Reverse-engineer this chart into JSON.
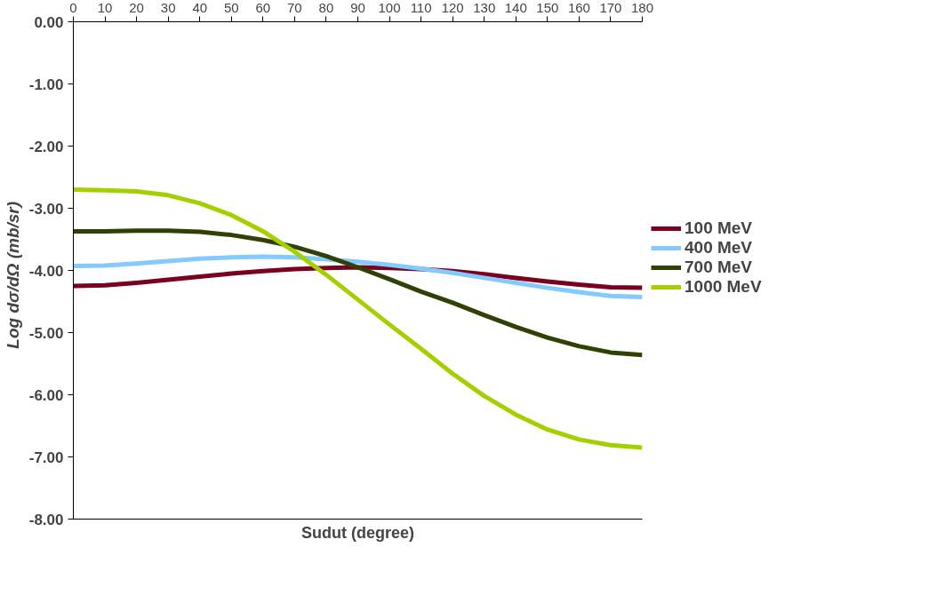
{
  "chart_data": {
    "type": "line",
    "xlabel": "Sudut (degree)",
    "ylabel": "Log dσ/dΩ   (mb/sr)",
    "x": [
      0,
      10,
      20,
      30,
      40,
      50,
      60,
      70,
      80,
      90,
      100,
      110,
      120,
      130,
      140,
      150,
      160,
      170,
      180
    ],
    "series": [
      {
        "name": "100 MeV",
        "color": "#7b0020",
        "values": [
          -4.25,
          -4.24,
          -4.2,
          -4.15,
          -4.1,
          -4.05,
          -4.01,
          -3.98,
          -3.96,
          -3.95,
          -3.96,
          -3.98,
          -4.01,
          -4.06,
          -4.12,
          -4.18,
          -4.23,
          -4.27,
          -4.28
        ]
      },
      {
        "name": "400 MeV",
        "color": "#83caff",
        "values": [
          -3.93,
          -3.92,
          -3.89,
          -3.85,
          -3.81,
          -3.79,
          -3.78,
          -3.79,
          -3.82,
          -3.86,
          -3.91,
          -3.97,
          -4.04,
          -4.12,
          -4.2,
          -4.28,
          -4.35,
          -4.41,
          -4.43
        ]
      },
      {
        "name": "700 MeV",
        "color": "#314004",
        "values": [
          -3.37,
          -3.37,
          -3.36,
          -3.36,
          -3.38,
          -3.43,
          -3.51,
          -3.62,
          -3.77,
          -3.95,
          -4.14,
          -4.34,
          -4.52,
          -4.72,
          -4.91,
          -5.08,
          -5.22,
          -5.32,
          -5.36
        ]
      },
      {
        "name": "1000 MeV",
        "color": "#a5cf00",
        "values": [
          -2.7,
          -2.71,
          -2.73,
          -2.79,
          -2.92,
          -3.11,
          -3.37,
          -3.7,
          -4.07,
          -4.47,
          -4.87,
          -5.26,
          -5.66,
          -6.02,
          -6.32,
          -6.56,
          -6.72,
          -6.81,
          -6.85
        ]
      }
    ],
    "xlim": [
      0,
      180
    ],
    "xticks": [
      0,
      10,
      20,
      30,
      40,
      50,
      60,
      70,
      80,
      90,
      100,
      110,
      120,
      130,
      140,
      150,
      160,
      170,
      180
    ],
    "ylim": [
      -8,
      0
    ],
    "yticks": [
      {
        "value": 0,
        "label": "0.00"
      },
      {
        "value": -1,
        "label": "-1.00"
      },
      {
        "value": -2,
        "label": "-2.00"
      },
      {
        "value": -3,
        "label": "-3.00"
      },
      {
        "value": -4,
        "label": "-4.00"
      },
      {
        "value": -5,
        "label": "-5.00"
      },
      {
        "value": -6,
        "label": "-6.00"
      },
      {
        "value": -7,
        "label": "-7.00"
      },
      {
        "value": -8,
        "label": "-8.00"
      }
    ],
    "grid": false,
    "legend": "right",
    "marker": "none",
    "line_style": "solid"
  }
}
